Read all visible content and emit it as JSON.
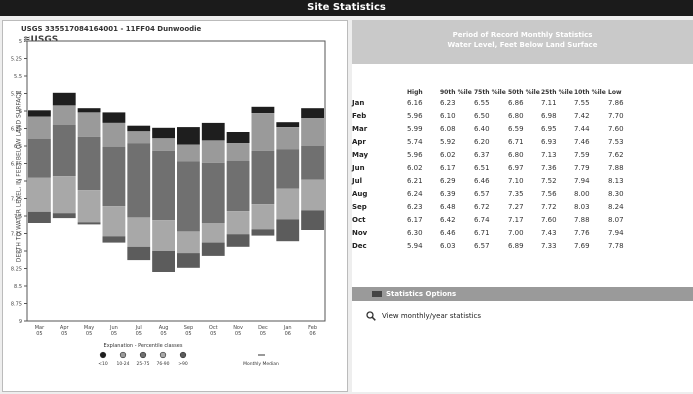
{
  "window": {
    "title": "Site Statistics"
  },
  "chart": {
    "title": "USGS 335517084164001 - 11FF04 Dunwoodie",
    "logo": "≋USGS",
    "ylabel": "DEPTH TO WATER LEVEL, IN FEET BELOW LAND SURFACE",
    "months": [
      "Mar",
      "Apr",
      "May",
      "Jun",
      "Jul",
      "Aug",
      "Sep",
      "Oct",
      "Nov",
      "Dec",
      "Jan",
      "Feb"
    ],
    "years": [
      "05",
      "05",
      "05",
      "05",
      "05",
      "05",
      "05",
      "05",
      "05",
      "05",
      "06",
      "06"
    ],
    "yticks": [
      "5",
      "5.25",
      "5.5",
      "5.75",
      "6",
      "6.25",
      "6.5",
      "6.75",
      "7",
      "7.25",
      "7.5",
      "7.75",
      "8",
      "8.25",
      "8.5",
      "8.75",
      "9"
    ],
    "legend": {
      "title": "Explanation - Percentile classes",
      "classes": [
        "<10",
        "10-24",
        "25-75",
        "76-90",
        ">90"
      ],
      "extra": "Monthly Median"
    }
  },
  "table": {
    "heading_line1": "Period of Record Monthly Statistics",
    "heading_line2": "Water Level, Feet Below Land Surface",
    "columns": [
      "High",
      "90th %ile",
      "75th %ile",
      "50th %ile",
      "25th %ile",
      "10th %ile",
      "Low"
    ],
    "rows": [
      {
        "month": "Jan",
        "values": [
          "6.16",
          "6.23",
          "6.55",
          "6.86",
          "7.11",
          "7.55",
          "7.86"
        ]
      },
      {
        "month": "Feb",
        "values": [
          "5.96",
          "6.10",
          "6.50",
          "6.80",
          "6.98",
          "7.42",
          "7.70"
        ]
      },
      {
        "month": "Mar",
        "values": [
          "5.99",
          "6.08",
          "6.40",
          "6.59",
          "6.95",
          "7.44",
          "7.60"
        ]
      },
      {
        "month": "Apr",
        "values": [
          "5.74",
          "5.92",
          "6.20",
          "6.71",
          "6.93",
          "7.46",
          "7.53"
        ]
      },
      {
        "month": "May",
        "values": [
          "5.96",
          "6.02",
          "6.37",
          "6.80",
          "7.13",
          "7.59",
          "7.62"
        ]
      },
      {
        "month": "Jun",
        "values": [
          "6.02",
          "6.17",
          "6.51",
          "6.97",
          "7.36",
          "7.79",
          "7.88"
        ]
      },
      {
        "month": "Jul",
        "values": [
          "6.21",
          "6.29",
          "6.46",
          "7.10",
          "7.52",
          "7.94",
          "8.13"
        ]
      },
      {
        "month": "Aug",
        "values": [
          "6.24",
          "6.39",
          "6.57",
          "7.35",
          "7.56",
          "8.00",
          "8.30"
        ]
      },
      {
        "month": "Sep",
        "values": [
          "6.23",
          "6.48",
          "6.72",
          "7.27",
          "7.72",
          "8.03",
          "8.24"
        ]
      },
      {
        "month": "Oct",
        "values": [
          "6.17",
          "6.42",
          "6.74",
          "7.17",
          "7.60",
          "7.88",
          "8.07"
        ]
      },
      {
        "month": "Nov",
        "values": [
          "6.30",
          "6.46",
          "6.71",
          "7.00",
          "7.43",
          "7.76",
          "7.94"
        ]
      },
      {
        "month": "Dec",
        "values": [
          "5.94",
          "6.03",
          "6.57",
          "6.89",
          "7.33",
          "7.69",
          "7.78"
        ]
      }
    ]
  },
  "options": {
    "title": "Statistics Options",
    "link_label": "View monthly/year statistics",
    "link_icon": "magnifier-icon"
  },
  "colors": {
    "titlebar": "#1b1b1b",
    "above90": "#1e1e1e",
    "p76_90": "#9a9a9a",
    "p25_75": "#707070",
    "p10_24": "#a8a8a8",
    "below10": "#5c5c5c",
    "header": "#c9c9c9",
    "options_bar": "#9a9a9a"
  }
}
